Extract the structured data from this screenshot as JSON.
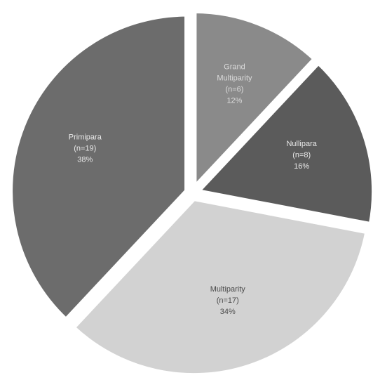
{
  "chart_data": {
    "type": "pie",
    "title": "",
    "start_angle_deg": 0,
    "direction": "clockwise",
    "slices": [
      {
        "name": "Grand Multiparity",
        "n_text": "(n=6)",
        "percent_text": "12%",
        "value": 12,
        "color": "#8a8a8a",
        "label_class": "mid"
      },
      {
        "name": "Nullipara",
        "n_text": "(n=8)",
        "percent_text": "16%",
        "value": 16,
        "color": "#5b5b5b",
        "label_class": ""
      },
      {
        "name": "Multiparity",
        "n_text": "(n=17)",
        "percent_text": "34%",
        "value": 34,
        "color": "#d2d2d2",
        "label_class": "dark"
      },
      {
        "name": "Primipara",
        "n_text": "(n=19)",
        "percent_text": "38%",
        "value": 38,
        "color": "#6c6c6c",
        "label_class": ""
      }
    ]
  }
}
